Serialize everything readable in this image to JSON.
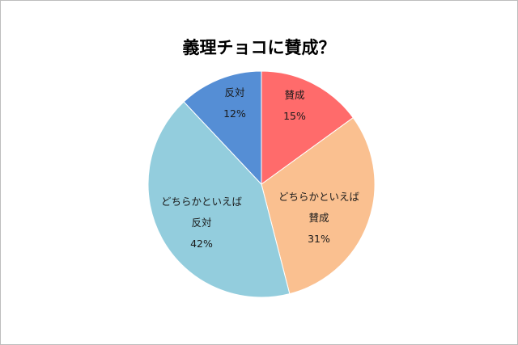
{
  "chart_data": {
    "type": "pie",
    "title": "義理チョコに賛成？",
    "start_angle_deg": 0,
    "direction": "clockwise",
    "slices": [
      {
        "label": "賛成",
        "label_lines": [
          "賛成"
        ],
        "value": 15,
        "percent_label": "15%",
        "color": "#FF6B6B"
      },
      {
        "label": "どちらかといえば賛成",
        "label_lines": [
          "どちらかといえば",
          "賛成"
        ],
        "value": 31,
        "percent_label": "31%",
        "color": "#FAC090"
      },
      {
        "label": "どちらかといえば反対",
        "label_lines": [
          "どちらかといえば",
          "反対"
        ],
        "value": 42,
        "percent_label": "42%",
        "color": "#93CDDD"
      },
      {
        "label": "反対",
        "label_lines": [
          "反対"
        ],
        "value": 12,
        "percent_label": "12%",
        "color": "#558ED5"
      }
    ]
  }
}
